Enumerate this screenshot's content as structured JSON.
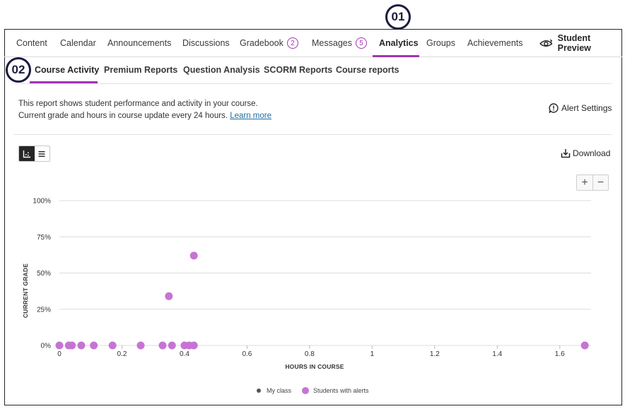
{
  "callouts": {
    "first": "01",
    "second": "02"
  },
  "top_nav": {
    "items": [
      {
        "label": "Content"
      },
      {
        "label": "Calendar"
      },
      {
        "label": "Announcements"
      },
      {
        "label": "Discussions"
      },
      {
        "label": "Gradebook",
        "badge": "2"
      },
      {
        "label": "Messages",
        "badge": "5"
      },
      {
        "label": "Analytics"
      },
      {
        "label": "Groups"
      },
      {
        "label": "Achievements"
      }
    ],
    "active": "Analytics",
    "student_preview": "Student Preview",
    "accent": "#a036b3"
  },
  "sub_nav": {
    "items": [
      {
        "label": "Course Activity"
      },
      {
        "label": "Premium Reports"
      },
      {
        "label": "Question Analysis"
      },
      {
        "label": "SCORM Reports"
      },
      {
        "label": "Course reports"
      }
    ],
    "active": "Course Activity"
  },
  "description": {
    "line1": "This report shows student performance and activity in your course.",
    "line2": "Current grade and hours in course update every 24 hours.",
    "learn_more": "Learn more"
  },
  "alert_settings": "Alert Settings",
  "download": "Download",
  "view_toggle": {
    "active": "chart",
    "icons": [
      "chart-icon",
      "list-icon"
    ]
  },
  "zoom": {
    "plus": "+",
    "minus": "−"
  },
  "chart_data": {
    "type": "scatter",
    "xlabel": "HOURS IN COURSE",
    "ylabel": "CURRENT GRADE",
    "xlim": [
      0,
      1.7
    ],
    "ylim": [
      0,
      100
    ],
    "x_ticks": [
      "0",
      "0.2",
      "0.4",
      "0.6",
      "0.8",
      "1",
      "1.2",
      "1.4",
      "1.6"
    ],
    "x_tick_values": [
      0,
      0.2,
      0.4,
      0.6,
      0.8,
      1.0,
      1.2,
      1.4,
      1.6
    ],
    "y_ticks": [
      "0%",
      "25%",
      "50%",
      "75%",
      "100%"
    ],
    "y_tick_values": [
      0,
      25,
      50,
      75,
      100
    ],
    "grid": true,
    "legend": [
      {
        "name": "My class",
        "color": "#555555"
      },
      {
        "name": "Students with alerts",
        "color": "#c674d4"
      }
    ],
    "legend_position": "bottom-center",
    "series": [
      {
        "name": "Students with alerts",
        "color": "#c674d4",
        "points": [
          {
            "x": 0.0,
            "y": 0
          },
          {
            "x": 0.03,
            "y": 0
          },
          {
            "x": 0.04,
            "y": 0
          },
          {
            "x": 0.07,
            "y": 0
          },
          {
            "x": 0.11,
            "y": 0
          },
          {
            "x": 0.17,
            "y": 0
          },
          {
            "x": 0.26,
            "y": 0
          },
          {
            "x": 0.33,
            "y": 0
          },
          {
            "x": 0.36,
            "y": 0
          },
          {
            "x": 0.4,
            "y": 0
          },
          {
            "x": 0.415,
            "y": 0
          },
          {
            "x": 0.43,
            "y": 0
          },
          {
            "x": 0.35,
            "y": 34
          },
          {
            "x": 0.43,
            "y": 62
          },
          {
            "x": 1.68,
            "y": 0
          }
        ]
      }
    ]
  }
}
